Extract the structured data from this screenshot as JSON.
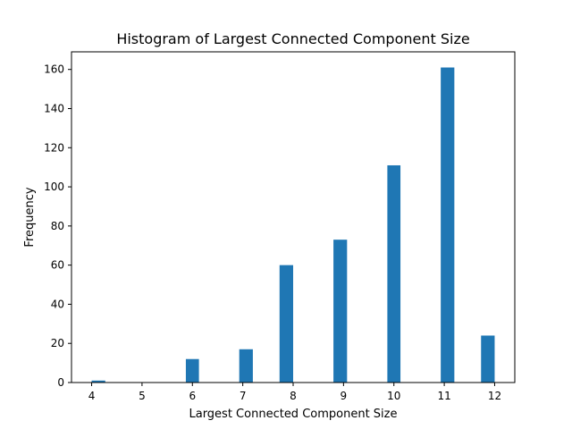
{
  "chart_data": {
    "type": "bar",
    "title": "Histogram of Largest Connected Component Size",
    "xlabel": "Largest Connected Component Size",
    "ylabel": "Frequency",
    "xlim": [
      3.6,
      12.4
    ],
    "ylim": [
      0,
      169
    ],
    "x_ticks": [
      4,
      5,
      6,
      7,
      8,
      9,
      10,
      11,
      12
    ],
    "y_ticks": [
      0,
      20,
      40,
      60,
      80,
      100,
      120,
      140,
      160
    ],
    "bins": [
      {
        "x0": 4.0,
        "x1": 4.27,
        "value": 1
      },
      {
        "x0": 5.87,
        "x1": 6.13,
        "value": 12
      },
      {
        "x0": 6.93,
        "x1": 7.2,
        "value": 17
      },
      {
        "x0": 7.73,
        "x1": 8.0,
        "value": 60
      },
      {
        "x0": 8.8,
        "x1": 9.07,
        "value": 73
      },
      {
        "x0": 9.87,
        "x1": 10.13,
        "value": 111
      },
      {
        "x0": 10.93,
        "x1": 11.2,
        "value": 161
      },
      {
        "x0": 11.73,
        "x1": 12.0,
        "value": 24
      }
    ],
    "bar_color": "#1f77b4",
    "grid": false,
    "legend": false
  }
}
